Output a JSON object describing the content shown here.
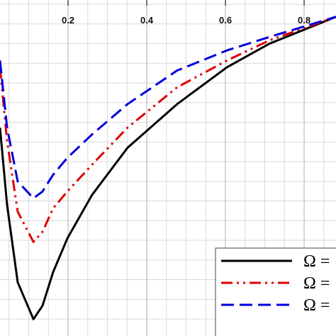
{
  "chart_data": {
    "type": "line",
    "x": [
      0.027,
      0.045,
      0.072,
      0.112,
      0.135,
      0.162,
      0.198,
      0.261,
      0.351,
      0.477,
      0.604,
      0.712,
      0.881
    ],
    "series": [
      {
        "name": "Ω =",
        "color": "#000000",
        "linestyle": "solid",
        "values": [
          0.62,
          0.39,
          0.16,
          0.05,
          0.09,
          0.19,
          0.29,
          0.42,
          0.56,
          0.69,
          0.8,
          0.87,
          0.95
        ]
      },
      {
        "name": "Ω =",
        "color": "#e00000",
        "linestyle": "dashdotdot",
        "values": [
          0.8,
          0.58,
          0.37,
          0.28,
          0.31,
          0.38,
          0.43,
          0.51,
          0.62,
          0.74,
          0.82,
          0.88,
          0.95
        ]
      },
      {
        "name": "Ω =",
        "color": "#0000e0",
        "linestyle": "dashed",
        "values": [
          0.82,
          0.62,
          0.46,
          0.41,
          0.43,
          0.48,
          0.53,
          0.6,
          0.69,
          0.79,
          0.85,
          0.89,
          0.95
        ]
      }
    ],
    "xlim": [
      0.027,
      0.881
    ],
    "xticks": [
      0.2,
      0.4,
      0.6,
      0.8
    ],
    "ylim": [
      0,
      1
    ],
    "grid": true
  }
}
